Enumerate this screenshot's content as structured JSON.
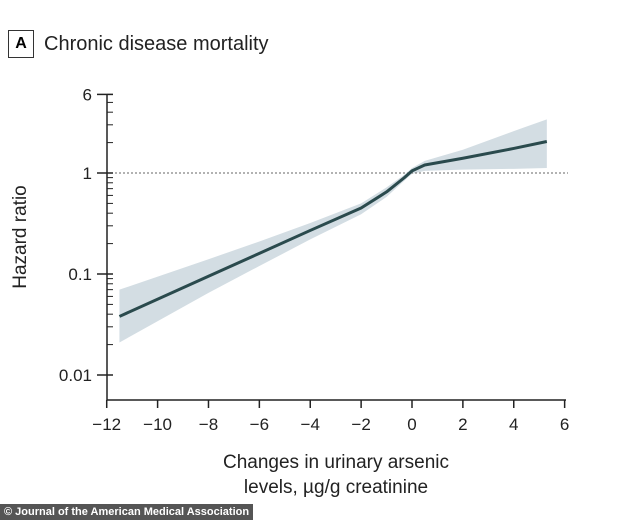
{
  "chart_data": {
    "type": "line",
    "panel_label": "A",
    "title": "Chronic disease mortality",
    "xlabel_lines": [
      "Changes in urinary arsenic",
      "levels, µg/g creatinine"
    ],
    "ylabel": "Hazard ratio",
    "xlim": [
      -12,
      6
    ],
    "ylim": [
      0.01,
      6
    ],
    "yscale": "log",
    "xticks": [
      -12,
      -10,
      -8,
      -6,
      -4,
      -2,
      0,
      2,
      4,
      6
    ],
    "yticks": [
      {
        "v": 6,
        "label": "6"
      },
      {
        "v": 1,
        "label": "1"
      },
      {
        "v": 0.1,
        "label": "0.1"
      },
      {
        "v": 0.01,
        "label": "0.01"
      }
    ],
    "reference_line": 1,
    "series": [
      {
        "name": "Hazard ratio",
        "x": [
          -11.5,
          -8,
          -6,
          -4,
          -2,
          -1,
          -0.3,
          0,
          0.5,
          2,
          4,
          5.3
        ],
        "y": [
          0.038,
          0.095,
          0.16,
          0.27,
          0.45,
          0.65,
          0.9,
          1.05,
          1.2,
          1.4,
          1.75,
          2.05
        ],
        "ci_lower": [
          0.021,
          0.065,
          0.12,
          0.22,
          0.39,
          0.58,
          0.84,
          0.98,
          1.05,
          1.08,
          1.1,
          1.12
        ],
        "ci_upper": [
          0.07,
          0.14,
          0.21,
          0.32,
          0.5,
          0.72,
          0.96,
          1.12,
          1.32,
          1.7,
          2.6,
          3.4
        ]
      }
    ]
  },
  "credit": "© Journal of the American Medical Association"
}
